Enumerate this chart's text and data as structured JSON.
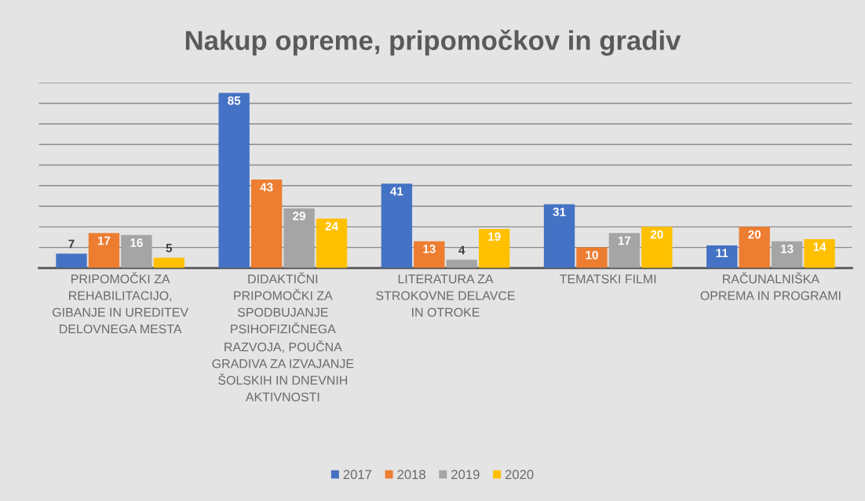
{
  "chart_data": {
    "type": "bar",
    "title": "Nakup opreme, pripomočkov in gradiv",
    "categories": [
      "PRIPOMOČKI ZA REHABILITACIJO, GIBANJE IN UREDITEV DELOVNEGA MESTA",
      "DIDAKTIČNI PRIPOMOČKI ZA SPODBUJANJE PSIHOFIZIČNEGA RAZVOJA, POUČNA GRADIVA ZA IZVAJANJE ŠOLSKIH IN DNEVNIH AKTIVNOSTI",
      "LITERATURA ZA STROKOVNE DELAVCE IN OTROKE",
      "TEMATSKI FILMI",
      "RAČUNALNIŠKA OPREMA IN PROGRAMI"
    ],
    "series": [
      {
        "name": "2017",
        "color": "#4472c4",
        "values": [
          7,
          85,
          41,
          31,
          11
        ]
      },
      {
        "name": "2018",
        "color": "#ed7d31",
        "values": [
          17,
          43,
          13,
          10,
          20
        ]
      },
      {
        "name": "2019",
        "color": "#a5a5a5",
        "values": [
          16,
          29,
          4,
          17,
          13
        ]
      },
      {
        "name": "2020",
        "color": "#ffc000",
        "values": [
          5,
          24,
          19,
          20,
          14
        ]
      }
    ],
    "ylim": [
      0,
      90
    ],
    "yticks": [
      {
        "value": 0,
        "label": null
      },
      {
        "value": 10,
        "label": null
      },
      {
        "value": 20,
        "label": null
      },
      {
        "value": 30,
        "label": null
      },
      {
        "value": 40,
        "label": null
      },
      {
        "value": 50,
        "label": null
      },
      {
        "value": 60,
        "label": null
      },
      {
        "value": 70,
        "label": null
      },
      {
        "value": 80,
        "label": null
      },
      {
        "value": 90,
        "label": null
      }
    ],
    "tick_labels": "x",
    "grid": "y",
    "data_labels": true,
    "legend": "bottom"
  }
}
